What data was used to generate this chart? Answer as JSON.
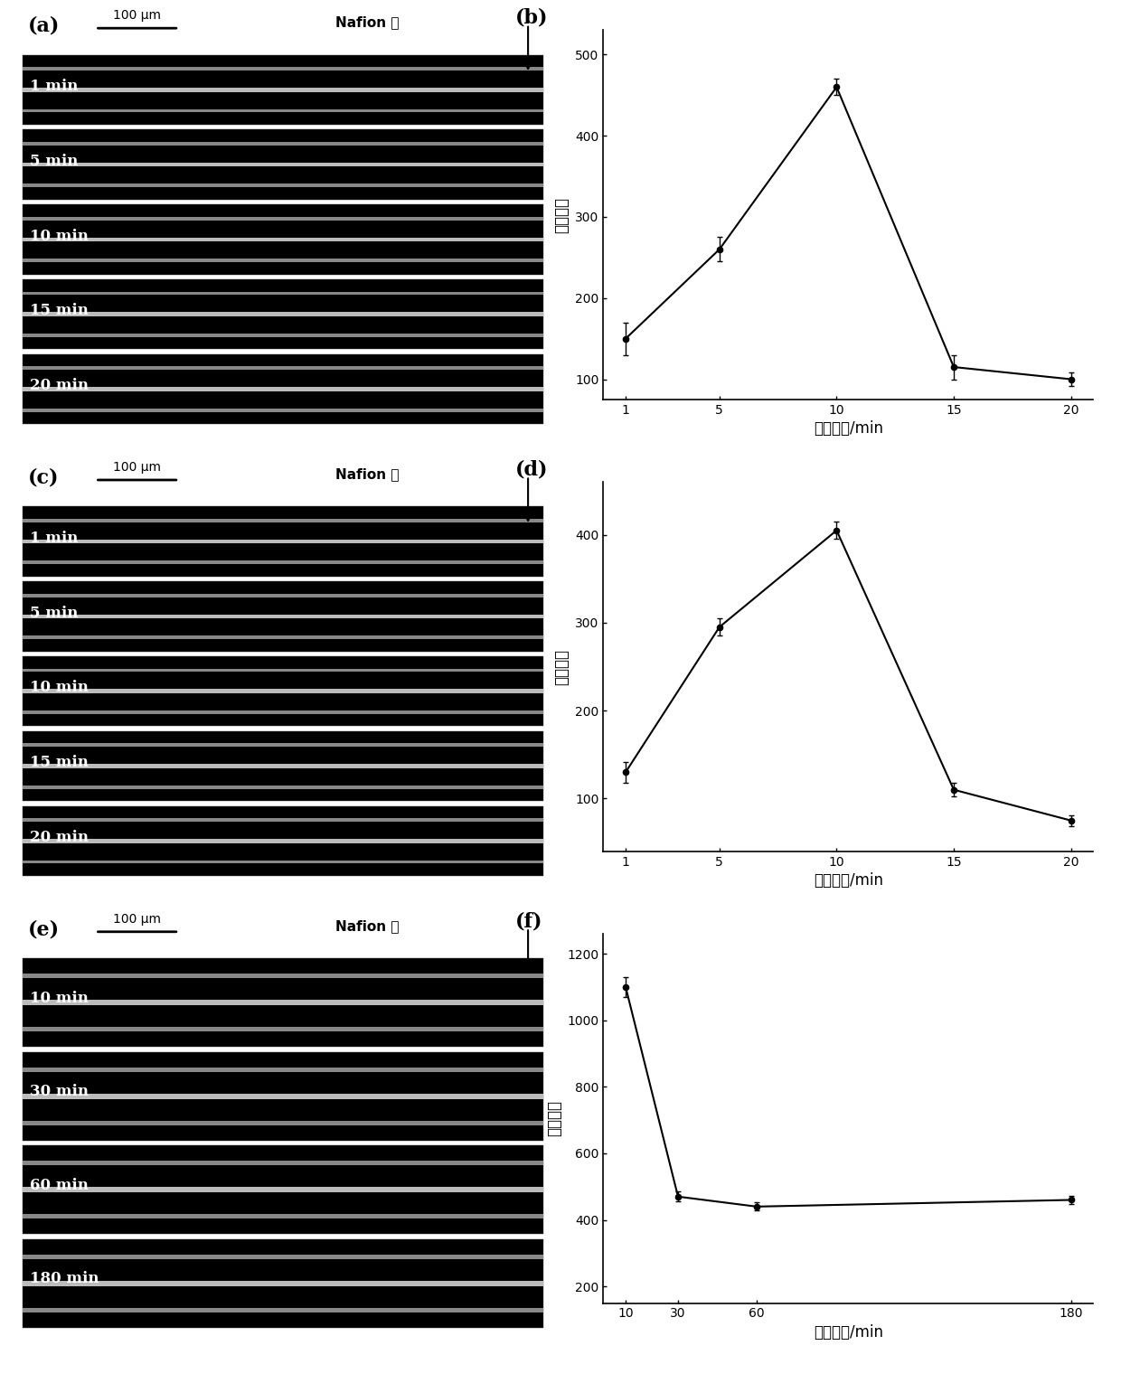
{
  "panel_b": {
    "x": [
      1,
      5,
      10,
      15,
      20
    ],
    "y": [
      150,
      260,
      460,
      115,
      100
    ],
    "yerr": [
      20,
      15,
      10,
      15,
      8
    ],
    "xlabel": "加热时间/min",
    "ylabel": "荧光强度",
    "ylim": [
      75,
      530
    ],
    "yticks": [
      100,
      200,
      300,
      400,
      500
    ],
    "xticks": [
      1,
      5,
      10,
      15,
      20
    ]
  },
  "panel_d": {
    "x": [
      1,
      5,
      10,
      15,
      20
    ],
    "y": [
      130,
      295,
      405,
      110,
      75
    ],
    "yerr": [
      12,
      10,
      10,
      8,
      6
    ],
    "xlabel": "冰浴时间/min",
    "ylabel": "荧光强度",
    "ylim": [
      40,
      460
    ],
    "yticks": [
      100,
      200,
      300,
      400
    ],
    "xticks": [
      1,
      5,
      10,
      15,
      20
    ]
  },
  "panel_f": {
    "x": [
      10,
      30,
      60,
      180
    ],
    "y": [
      1100,
      470,
      440,
      460
    ],
    "yerr": [
      30,
      15,
      12,
      12
    ],
    "xlabel": "孵育时间/min",
    "ylabel": "荧光强度",
    "ylim": [
      150,
      1260
    ],
    "yticks": [
      200,
      400,
      600,
      800,
      1000,
      1200
    ],
    "xticks": [
      10,
      30,
      60,
      180
    ]
  },
  "panel_a": {
    "label": "(a)",
    "nafion_label": "Nafion 膜",
    "scale_label": "100 μm",
    "rows": [
      "1 min",
      "5 min",
      "10 min",
      "15 min",
      "20 min"
    ],
    "n_rows": 5
  },
  "panel_c": {
    "label": "(c)",
    "nafion_label": "Nafion 膜",
    "scale_label": "100 μm",
    "rows": [
      "1 min",
      "5 min",
      "10 min",
      "15 min",
      "20 min"
    ],
    "n_rows": 5
  },
  "panel_e": {
    "label": "(e)",
    "nafion_label": "Nafion 膜",
    "scale_label": "100 μm",
    "rows": [
      "10 min",
      "30 min",
      "60 min",
      "180 min"
    ],
    "n_rows": 4
  },
  "fig_bg": "#ffffff",
  "strip_bg": "#000000",
  "stripe_colors": [
    "#888888",
    "#cccccc",
    "#aaaaaa"
  ],
  "stripe_bright": "#c0c0c0"
}
